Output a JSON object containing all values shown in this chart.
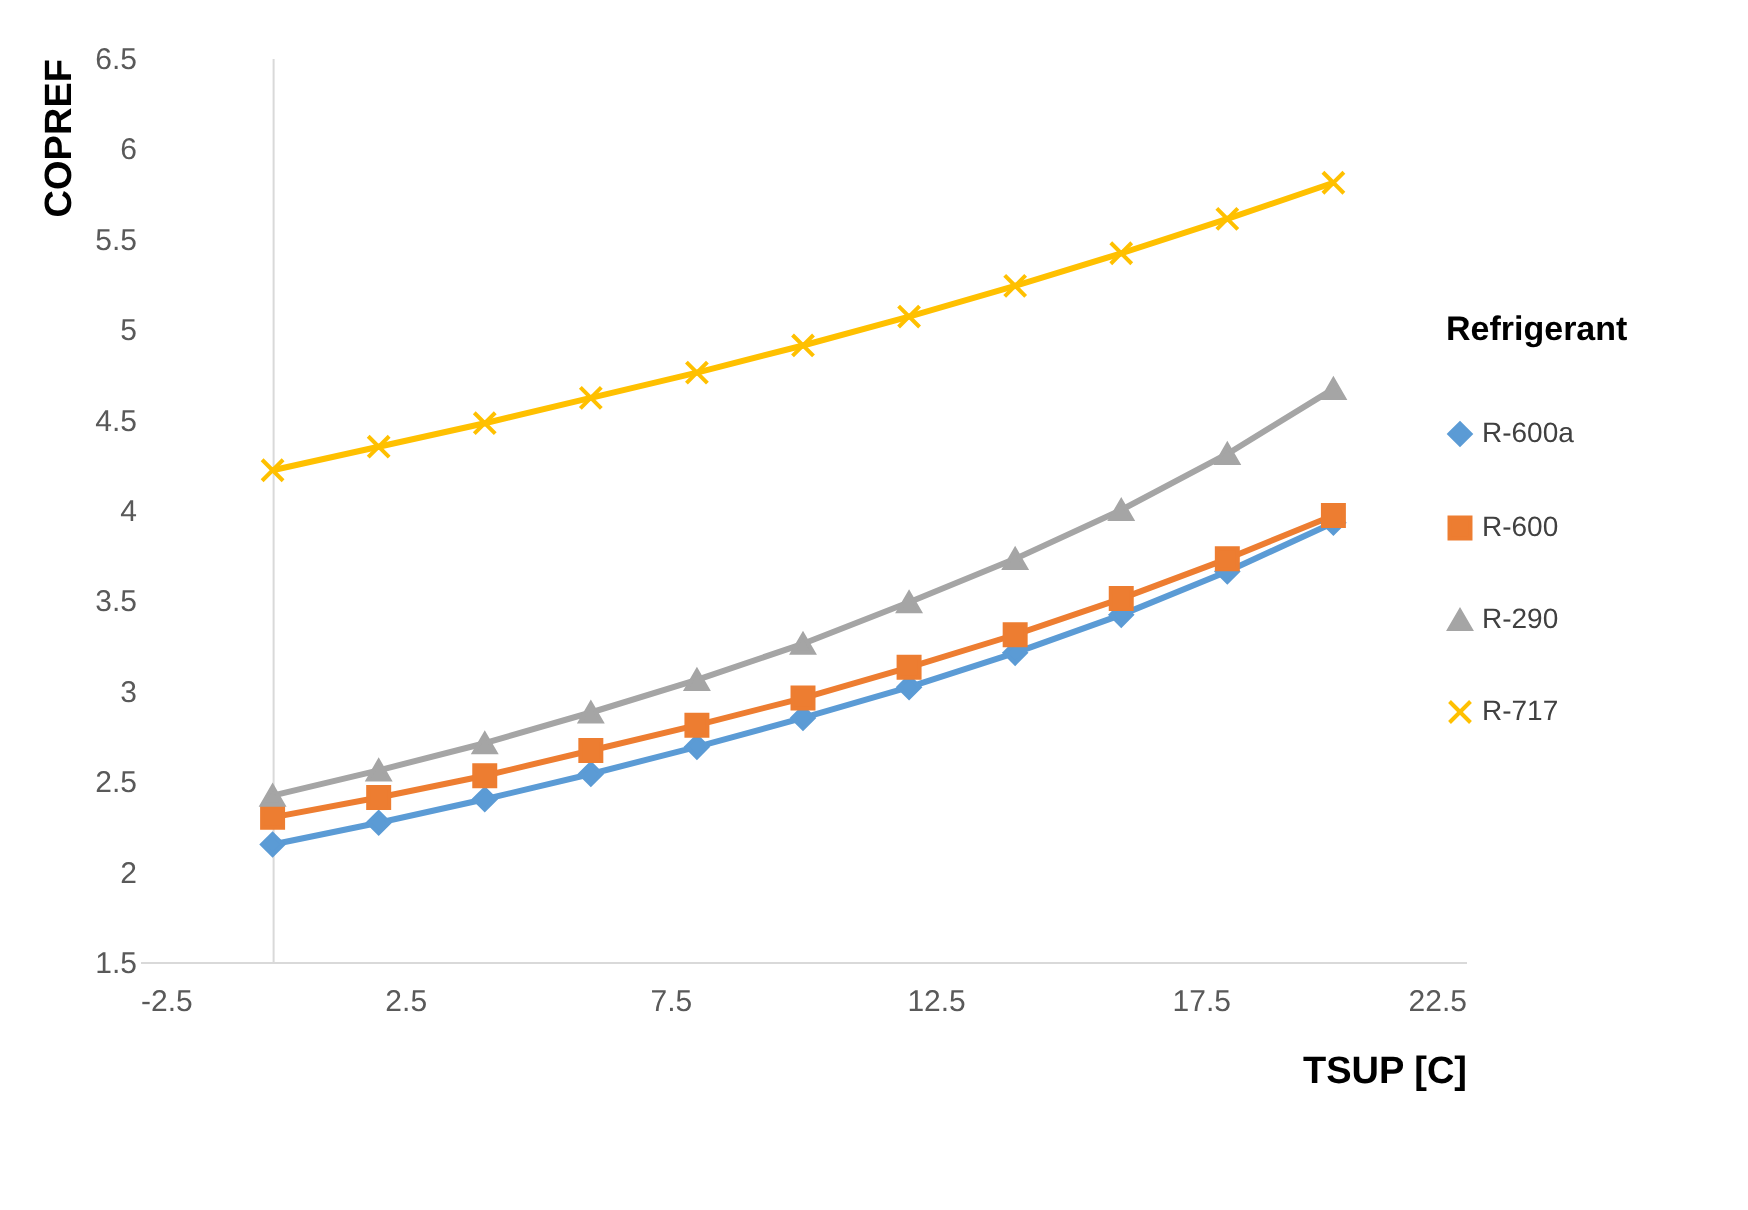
{
  "chart_data": {
    "type": "line",
    "xlabel": "TSUP  [C]",
    "ylabel": "COPREF",
    "legend_title": "Refrigerant",
    "legend": "right",
    "x": [
      0,
      2,
      4,
      6,
      8,
      10,
      12,
      14,
      16,
      18,
      20
    ],
    "xlim": [
      -2.5,
      22.5
    ],
    "xticks": [
      -2.5,
      2.5,
      7.5,
      12.5,
      17.5,
      22.5
    ],
    "ylim": [
      1.5,
      6.5
    ],
    "yticks": [
      1.5,
      2,
      2.5,
      3,
      3.5,
      4,
      4.5,
      5,
      5.5,
      6,
      6.5
    ],
    "grid": false,
    "series": [
      {
        "name": "R-600a",
        "color": "#5b9bd5",
        "marker": "diamond",
        "values": [
          2.15,
          2.27,
          2.4,
          2.54,
          2.69,
          2.85,
          3.02,
          3.21,
          3.42,
          3.66,
          3.93
        ]
      },
      {
        "name": "R-600",
        "color": "#ed7d31",
        "marker": "square",
        "values": [
          2.3,
          2.41,
          2.53,
          2.67,
          2.81,
          2.96,
          3.13,
          3.31,
          3.51,
          3.73,
          3.97
        ]
      },
      {
        "name": "R-290",
        "color": "#a5a5a5",
        "marker": "triangle",
        "values": [
          2.42,
          2.56,
          2.71,
          2.88,
          3.06,
          3.26,
          3.49,
          3.73,
          4.0,
          4.31,
          4.67
        ]
      },
      {
        "name": "R-717",
        "color": "#ffc000",
        "marker": "cross",
        "values": [
          4.22,
          4.35,
          4.48,
          4.62,
          4.76,
          4.91,
          5.07,
          5.24,
          5.42,
          5.61,
          5.81
        ]
      }
    ]
  }
}
